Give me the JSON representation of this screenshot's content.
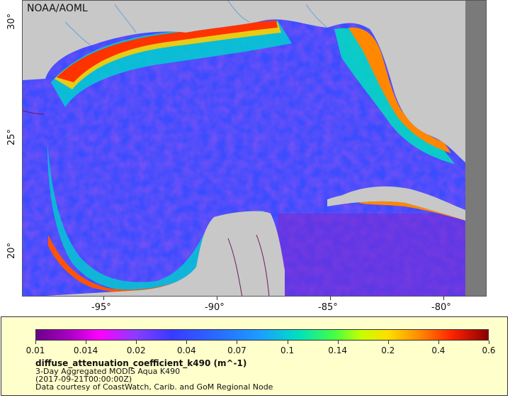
{
  "map": {
    "credit": "NOAA/AOML",
    "lon_labels": [
      "-95°",
      "-90°",
      "-85°",
      "-80°"
    ],
    "lat_labels": [
      "30°",
      "25°",
      "20°"
    ]
  },
  "legend": {
    "ticks": [
      "0.01",
      "0.014",
      "0.02",
      "0.04",
      "0.07",
      "0.1",
      "0.14",
      "0.2",
      "0.4",
      "0.6"
    ],
    "title": "diffuse_attenuation_coefficient_k490 (m^-1)",
    "line1": "3-Day Aggregated MODIS Aqua K490",
    "line2": "(2017-09-21T00:00:00Z)",
    "line3": "Data courtesy of CoastWatch, Carib. and GoM Regional Node"
  },
  "colors": {
    "land": "#c8c8c8",
    "nodata": "#7a7a7a",
    "open_ocean": "#3a4cff",
    "coastal_high": "#ff3300",
    "rivers": "#6a9fd8",
    "borders": "#6a1a5a"
  }
}
